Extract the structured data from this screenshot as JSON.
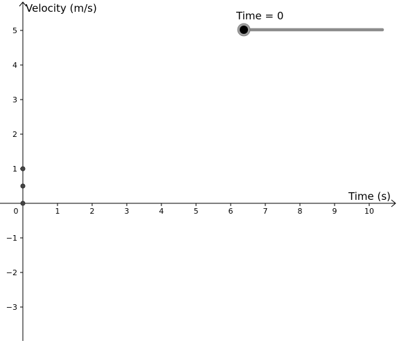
{
  "chart_data": {
    "type": "scatter",
    "xlabel": "Time (s)",
    "ylabel": "Velocity (m/s)",
    "xlim": [
      0,
      10.6
    ],
    "ylim": [
      -3.95,
      5.8
    ],
    "x_ticks": [
      0,
      1,
      2,
      3,
      4,
      5,
      6,
      7,
      8,
      9,
      10
    ],
    "y_ticks": [
      -3,
      -2,
      -1,
      1,
      2,
      3,
      4,
      5
    ],
    "x_tick_labels": [
      "0",
      "1",
      "2",
      "3",
      "4",
      "5",
      "6",
      "7",
      "8",
      "9",
      "10"
    ],
    "y_tick_labels": [
      "−3",
      "−2",
      "−1",
      "1",
      "2",
      "3",
      "4",
      "5"
    ],
    "grid": false,
    "points": [
      {
        "x": 0,
        "y": 1
      },
      {
        "x": 0,
        "y": 0.5
      },
      {
        "x": 0,
        "y": 0
      }
    ],
    "point_color": "#444444",
    "axis_color": "#000000"
  },
  "slider": {
    "label": "Time = 0",
    "value": 0,
    "min": 0,
    "max": 1,
    "track_color": "#8c8c8c",
    "knob_color": "#000000"
  }
}
